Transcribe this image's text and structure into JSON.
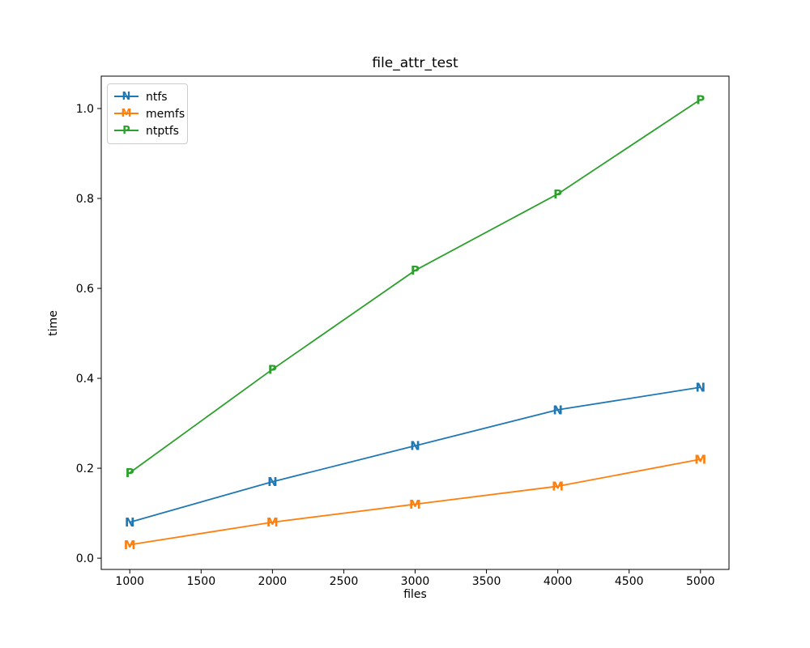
{
  "figure": {
    "title": "file_attr_test",
    "xlabel": "files",
    "ylabel": "time"
  },
  "chart_data": {
    "type": "line",
    "title": "file_attr_test",
    "xlabel": "files",
    "ylabel": "time",
    "x": [
      1000,
      2000,
      3000,
      4000,
      5000
    ],
    "series": [
      {
        "name": "ntfs",
        "marker": "N",
        "color": "#1f77b4",
        "values": [
          0.08,
          0.17,
          0.25,
          0.33,
          0.38
        ]
      },
      {
        "name": "memfs",
        "marker": "M",
        "color": "#ff7f0e",
        "values": [
          0.03,
          0.08,
          0.12,
          0.16,
          0.22
        ]
      },
      {
        "name": "ntptfs",
        "marker": "P",
        "color": "#2ca02c",
        "values": [
          0.19,
          0.42,
          0.64,
          0.81,
          1.02
        ]
      }
    ],
    "xticks": [
      1000,
      1500,
      2000,
      2500,
      3000,
      3500,
      4000,
      4500,
      5000
    ],
    "xtick_labels": [
      "1000",
      "1500",
      "2000",
      "2500",
      "3000",
      "3500",
      "4000",
      "4500",
      "5000"
    ],
    "yticks": [
      0.0,
      0.2,
      0.4,
      0.6,
      0.8,
      1.0
    ],
    "ytick_labels": [
      "0.0",
      "0.2",
      "0.4",
      "0.6",
      "0.8",
      "1.0"
    ],
    "xlim": [
      800,
      5200
    ],
    "ylim": [
      -0.025,
      1.072
    ],
    "grid": false,
    "legend_position": "upper left",
    "colors": {
      "spine": "#000000",
      "text": "#000000",
      "background": "#ffffff",
      "legend_border": "#cccccc"
    }
  }
}
